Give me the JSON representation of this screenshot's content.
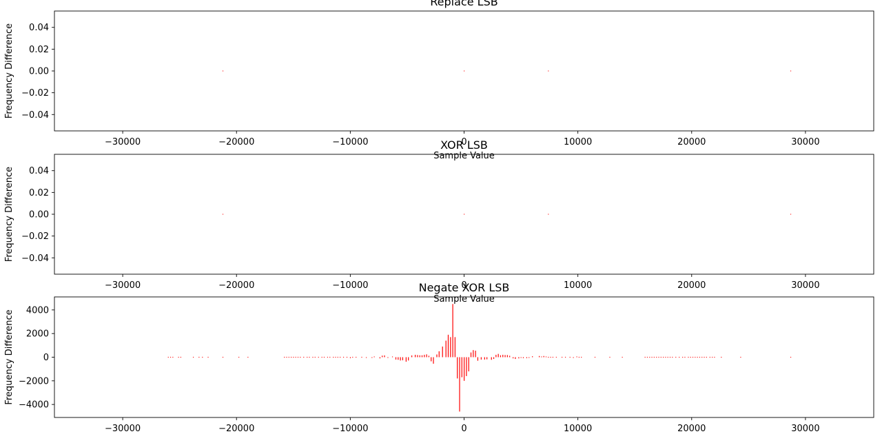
{
  "chart_data": [
    {
      "type": "bar",
      "title": "Replace LSB",
      "xlabel": "Sample Value",
      "ylabel": "Frequency Difference",
      "xlim": [
        -36000,
        36000
      ],
      "ylim": [
        -0.055,
        0.055
      ],
      "xticks": [
        -30000,
        -20000,
        -10000,
        0,
        10000,
        20000,
        30000
      ],
      "xtick_labels": [
        "−30000",
        "−20000",
        "−10000",
        "0",
        "10000",
        "20000",
        "30000"
      ],
      "yticks": [
        0.04,
        0.02,
        0.0,
        -0.02,
        -0.04
      ],
      "ytick_labels": [
        "0.04",
        "0.02",
        "0.00",
        "−0.02",
        "−0.04"
      ],
      "color": "#ff0000",
      "x": [
        -21200,
        0,
        7400,
        28700
      ],
      "values": [
        0,
        0,
        0,
        0
      ]
    },
    {
      "type": "bar",
      "title": "XOR LSB",
      "xlabel": "Sample Value",
      "ylabel": "Frequency Difference",
      "xlim": [
        -36000,
        36000
      ],
      "ylim": [
        -0.055,
        0.055
      ],
      "xticks": [
        -30000,
        -20000,
        -10000,
        0,
        10000,
        20000,
        30000
      ],
      "xtick_labels": [
        "−30000",
        "−20000",
        "−10000",
        "0",
        "10000",
        "20000",
        "30000"
      ],
      "yticks": [
        0.04,
        0.02,
        0.0,
        -0.02,
        -0.04
      ],
      "ytick_labels": [
        "0.04",
        "0.02",
        "0.00",
        "−0.02",
        "−0.04"
      ],
      "color": "#ff0000",
      "x": [
        -21200,
        0,
        7400,
        28700
      ],
      "values": [
        0,
        0,
        0,
        0
      ]
    },
    {
      "type": "bar",
      "title": "Negate XOR LSB",
      "xlabel": "",
      "ylabel": "Frequency Difference",
      "xlim": [
        -36000,
        36000
      ],
      "ylim": [
        -5100,
        5100
      ],
      "xticks": [
        -30000,
        -20000,
        -10000,
        0,
        10000,
        20000,
        30000
      ],
      "xtick_labels": [
        "−30000",
        "−20000",
        "−10000",
        "0",
        "10000",
        "20000",
        "30000"
      ],
      "yticks": [
        4000,
        2000,
        0,
        -2000,
        -4000
      ],
      "ytick_labels": [
        "4000",
        "2000",
        "0",
        "−2000",
        "−4000"
      ],
      "color": "#ff0000",
      "x": [
        -26000,
        -25800,
        -25600,
        -25100,
        -24900,
        -23800,
        -23300,
        -23000,
        -22500,
        -21200,
        -19800,
        -19000,
        -15800,
        -15600,
        -15400,
        -15200,
        -15000,
        -14800,
        -14600,
        -14400,
        -14100,
        -13800,
        -13600,
        -13300,
        -13100,
        -12800,
        -12500,
        -12300,
        -12000,
        -11800,
        -11500,
        -11300,
        -11100,
        -10900,
        -10600,
        -10300,
        -10000,
        -9800,
        -9500,
        -9000,
        -8600,
        -8100,
        -7900,
        -7400,
        -7200,
        -7000,
        -6700,
        -6300,
        -6000,
        -5800,
        -5600,
        -5400,
        -5100,
        -4900,
        -4600,
        -4300,
        -4100,
        -3900,
        -3700,
        -3500,
        -3300,
        -3100,
        -2900,
        -2700,
        -2400,
        -2200,
        -1900,
        -1600,
        -1400,
        -1200,
        -1000,
        -800,
        -600,
        -400,
        -200,
        0,
        200,
        400,
        600,
        800,
        1000,
        1200,
        1500,
        1800,
        2000,
        2400,
        2600,
        2800,
        3000,
        3200,
        3400,
        3600,
        3800,
        4000,
        4300,
        4500,
        4800,
        5000,
        5200,
        5500,
        5700,
        6000,
        6600,
        6800,
        7000,
        7200,
        7400,
        7600,
        7800,
        8100,
        8600,
        8900,
        9300,
        9600,
        9900,
        10100,
        10300,
        11500,
        12800,
        13900,
        15900,
        16100,
        16300,
        16500,
        16700,
        16900,
        17100,
        17300,
        17500,
        17700,
        17900,
        18100,
        18300,
        18600,
        18900,
        19200,
        19400,
        19700,
        19900,
        20100,
        20300,
        20500,
        20700,
        20900,
        21100,
        21300,
        21600,
        21800,
        22000,
        22600,
        24300,
        28700
      ],
      "values": [
        10,
        10,
        10,
        10,
        10,
        10,
        10,
        10,
        10,
        10,
        10,
        10,
        10,
        10,
        10,
        10,
        10,
        10,
        10,
        10,
        10,
        10,
        10,
        10,
        10,
        10,
        10,
        10,
        30,
        10,
        10,
        10,
        10,
        10,
        10,
        10,
        -80,
        40,
        -20,
        20,
        -60,
        -60,
        60,
        -100,
        130,
        150,
        -60,
        60,
        -200,
        -220,
        -280,
        -260,
        -380,
        -280,
        150,
        200,
        180,
        160,
        160,
        200,
        240,
        120,
        -350,
        -550,
        230,
        500,
        900,
        1400,
        1900,
        1700,
        4500,
        1700,
        -1800,
        -4600,
        -1700,
        -2000,
        -1600,
        -1200,
        400,
        600,
        550,
        -300,
        -200,
        -200,
        -180,
        -220,
        -150,
        200,
        280,
        160,
        200,
        180,
        180,
        120,
        -100,
        -150,
        -100,
        -60,
        -80,
        -80,
        -60,
        80,
        100,
        60,
        100,
        60,
        30,
        30,
        40,
        30,
        30,
        -20,
        40,
        -60,
        60,
        20,
        20,
        10,
        10,
        10,
        10,
        10,
        10,
        10,
        10,
        10,
        10,
        10,
        10,
        10,
        10,
        10,
        10,
        10,
        10,
        10,
        10,
        10,
        10,
        10,
        10,
        10,
        10,
        10,
        10,
        10,
        10,
        10,
        10,
        10,
        10,
        10
      ]
    }
  ]
}
